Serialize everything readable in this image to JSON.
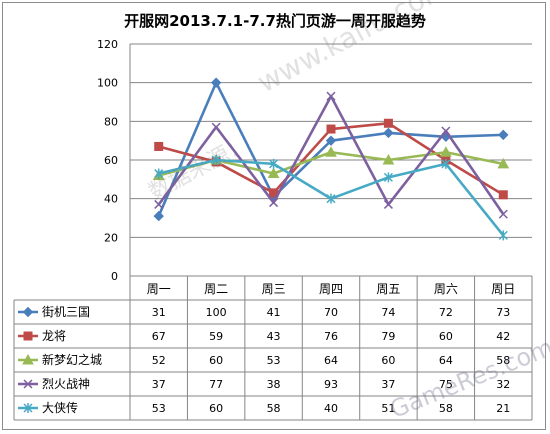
{
  "title": "开服网2013.7.1-7.7热门页游一周开服趋势",
  "chart_data": {
    "type": "line",
    "title": "开服网2013.7.1-7.7热门页游一周开服趋势",
    "categories": [
      "周一",
      "周二",
      "周三",
      "周四",
      "周五",
      "周六",
      "周日"
    ],
    "ylim": [
      0,
      120
    ],
    "yticks": [
      0,
      20,
      40,
      60,
      80,
      100,
      120
    ],
    "grid": true,
    "legend": "data table below plot",
    "series": [
      {
        "name": "街机三国",
        "values": [
          31,
          100,
          41,
          70,
          74,
          72,
          73
        ],
        "color": "#4a7ebb",
        "marker": "diamond"
      },
      {
        "name": "龙将",
        "values": [
          67,
          59,
          43,
          76,
          79,
          60,
          42
        ],
        "color": "#be4b48",
        "marker": "square"
      },
      {
        "name": "新梦幻之城",
        "values": [
          52,
          60,
          53,
          64,
          60,
          64,
          58
        ],
        "color": "#98b954",
        "marker": "triangle"
      },
      {
        "name": "烈火战神",
        "values": [
          37,
          77,
          38,
          93,
          37,
          75,
          32
        ],
        "color": "#7d60a0",
        "marker": "x"
      },
      {
        "name": "大侠传",
        "values": [
          53,
          60,
          58,
          40,
          51,
          58,
          21
        ],
        "color": "#46aac5",
        "marker": "star"
      }
    ]
  },
  "watermarks": {
    "site": "www.kaifu.com",
    "source": "数据来源：",
    "brand": "GameRes.com"
  }
}
